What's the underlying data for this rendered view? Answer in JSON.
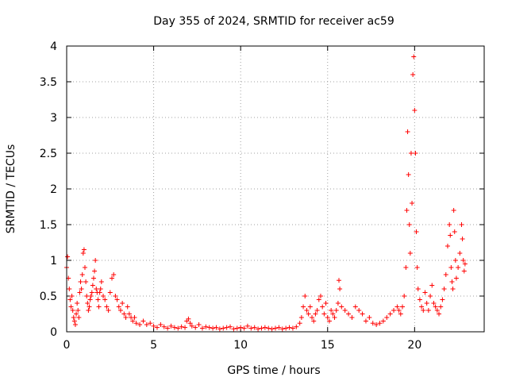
{
  "chart_data": {
    "type": "scatter",
    "title": "Day 355 of 2024, SRMTID for receiver ac59",
    "xlabel": "GPS time / hours",
    "ylabel": "SRMTID / TECUs",
    "xlim": [
      0,
      24
    ],
    "ylim": [
      0,
      4
    ],
    "xticks": [
      0,
      5,
      10,
      15,
      20
    ],
    "yticks": [
      0,
      0.5,
      1,
      1.5,
      2,
      2.5,
      3,
      3.5,
      4
    ],
    "xtick_labels": [
      "0",
      "5",
      "10",
      "15",
      "20"
    ],
    "ytick_labels": [
      "0",
      "0.5",
      "1",
      "1.5",
      "2",
      "2.5",
      "3",
      "3.5",
      "4"
    ],
    "grid": true,
    "marker": "+",
    "marker_color": "#ff0000",
    "series": [
      {
        "name": "SRMTID",
        "points": [
          [
            0.0,
            0.9
          ],
          [
            0.05,
            1.05
          ],
          [
            0.1,
            0.75
          ],
          [
            0.15,
            0.6
          ],
          [
            0.2,
            0.45
          ],
          [
            0.25,
            0.35
          ],
          [
            0.3,
            0.5
          ],
          [
            0.35,
            0.3
          ],
          [
            0.4,
            0.2
          ],
          [
            0.45,
            0.15
          ],
          [
            0.5,
            0.1
          ],
          [
            0.55,
            0.25
          ],
          [
            0.6,
            0.4
          ],
          [
            0.65,
            0.3
          ],
          [
            0.7,
            0.2
          ],
          [
            0.75,
            0.55
          ],
          [
            0.8,
            0.7
          ],
          [
            0.85,
            0.6
          ],
          [
            0.9,
            0.8
          ],
          [
            0.95,
            1.1
          ],
          [
            1.0,
            1.15
          ],
          [
            1.05,
            0.9
          ],
          [
            1.1,
            0.7
          ],
          [
            1.15,
            0.5
          ],
          [
            1.2,
            0.4
          ],
          [
            1.25,
            0.3
          ],
          [
            1.3,
            0.35
          ],
          [
            1.35,
            0.45
          ],
          [
            1.4,
            0.5
          ],
          [
            1.45,
            0.55
          ],
          [
            1.5,
            0.65
          ],
          [
            1.55,
            0.75
          ],
          [
            1.6,
            0.85
          ],
          [
            1.65,
            1.0
          ],
          [
            1.7,
            0.6
          ],
          [
            1.75,
            0.55
          ],
          [
            1.8,
            0.45
          ],
          [
            1.85,
            0.35
          ],
          [
            1.9,
            0.55
          ],
          [
            1.95,
            0.6
          ],
          [
            2.0,
            0.7
          ],
          [
            2.1,
            0.5
          ],
          [
            2.2,
            0.45
          ],
          [
            2.3,
            0.35
          ],
          [
            2.4,
            0.3
          ],
          [
            2.5,
            0.55
          ],
          [
            2.6,
            0.75
          ],
          [
            2.7,
            0.8
          ],
          [
            2.8,
            0.5
          ],
          [
            2.9,
            0.45
          ],
          [
            3.0,
            0.35
          ],
          [
            3.1,
            0.3
          ],
          [
            3.2,
            0.4
          ],
          [
            3.3,
            0.25
          ],
          [
            3.4,
            0.2
          ],
          [
            3.5,
            0.35
          ],
          [
            3.6,
            0.25
          ],
          [
            3.7,
            0.2
          ],
          [
            3.8,
            0.15
          ],
          [
            3.9,
            0.2
          ],
          [
            4.0,
            0.12
          ],
          [
            4.2,
            0.1
          ],
          [
            4.4,
            0.15
          ],
          [
            4.6,
            0.1
          ],
          [
            4.8,
            0.12
          ],
          [
            5.0,
            0.08
          ],
          [
            5.2,
            0.06
          ],
          [
            5.4,
            0.1
          ],
          [
            5.6,
            0.07
          ],
          [
            5.8,
            0.05
          ],
          [
            6.0,
            0.08
          ],
          [
            6.2,
            0.06
          ],
          [
            6.4,
            0.05
          ],
          [
            6.6,
            0.07
          ],
          [
            6.8,
            0.06
          ],
          [
            6.9,
            0.15
          ],
          [
            7.0,
            0.18
          ],
          [
            7.1,
            0.12
          ],
          [
            7.2,
            0.08
          ],
          [
            7.4,
            0.06
          ],
          [
            7.6,
            0.1
          ],
          [
            7.8,
            0.05
          ],
          [
            8.0,
            0.07
          ],
          [
            8.2,
            0.06
          ],
          [
            8.4,
            0.05
          ],
          [
            8.6,
            0.06
          ],
          [
            8.8,
            0.04
          ],
          [
            9.0,
            0.05
          ],
          [
            9.2,
            0.06
          ],
          [
            9.4,
            0.07
          ],
          [
            9.6,
            0.04
          ],
          [
            9.8,
            0.05
          ],
          [
            10.0,
            0.06
          ],
          [
            10.2,
            0.05
          ],
          [
            10.4,
            0.08
          ],
          [
            10.6,
            0.05
          ],
          [
            10.8,
            0.06
          ],
          [
            11.0,
            0.04
          ],
          [
            11.2,
            0.05
          ],
          [
            11.4,
            0.06
          ],
          [
            11.6,
            0.05
          ],
          [
            11.8,
            0.04
          ],
          [
            12.0,
            0.05
          ],
          [
            12.2,
            0.06
          ],
          [
            12.4,
            0.04
          ],
          [
            12.6,
            0.05
          ],
          [
            12.8,
            0.06
          ],
          [
            13.0,
            0.05
          ],
          [
            13.2,
            0.07
          ],
          [
            13.4,
            0.12
          ],
          [
            13.5,
            0.2
          ],
          [
            13.6,
            0.35
          ],
          [
            13.7,
            0.5
          ],
          [
            13.8,
            0.3
          ],
          [
            13.9,
            0.25
          ],
          [
            14.0,
            0.35
          ],
          [
            14.1,
            0.2
          ],
          [
            14.2,
            0.15
          ],
          [
            14.3,
            0.25
          ],
          [
            14.4,
            0.3
          ],
          [
            14.5,
            0.45
          ],
          [
            14.6,
            0.5
          ],
          [
            14.7,
            0.35
          ],
          [
            14.8,
            0.25
          ],
          [
            14.9,
            0.4
          ],
          [
            15.0,
            0.2
          ],
          [
            15.1,
            0.15
          ],
          [
            15.2,
            0.3
          ],
          [
            15.3,
            0.25
          ],
          [
            15.4,
            0.2
          ],
          [
            15.5,
            0.3
          ],
          [
            15.6,
            0.4
          ],
          [
            15.65,
            0.72
          ],
          [
            15.7,
            0.6
          ],
          [
            15.8,
            0.35
          ],
          [
            16.0,
            0.3
          ],
          [
            16.2,
            0.25
          ],
          [
            16.4,
            0.2
          ],
          [
            16.6,
            0.35
          ],
          [
            16.8,
            0.3
          ],
          [
            17.0,
            0.25
          ],
          [
            17.2,
            0.15
          ],
          [
            17.4,
            0.2
          ],
          [
            17.6,
            0.12
          ],
          [
            17.8,
            0.1
          ],
          [
            18.0,
            0.12
          ],
          [
            18.2,
            0.15
          ],
          [
            18.4,
            0.2
          ],
          [
            18.6,
            0.25
          ],
          [
            18.8,
            0.3
          ],
          [
            19.0,
            0.35
          ],
          [
            19.1,
            0.3
          ],
          [
            19.2,
            0.25
          ],
          [
            19.3,
            0.35
          ],
          [
            19.4,
            0.5
          ],
          [
            19.5,
            0.9
          ],
          [
            19.55,
            1.7
          ],
          [
            19.6,
            2.8
          ],
          [
            19.65,
            2.2
          ],
          [
            19.7,
            1.5
          ],
          [
            19.75,
            1.1
          ],
          [
            19.8,
            2.5
          ],
          [
            19.85,
            1.8
          ],
          [
            19.9,
            3.6
          ],
          [
            19.95,
            3.85
          ],
          [
            20.0,
            3.1
          ],
          [
            20.05,
            2.5
          ],
          [
            20.1,
            1.4
          ],
          [
            20.15,
            0.9
          ],
          [
            20.2,
            0.6
          ],
          [
            20.3,
            0.45
          ],
          [
            20.4,
            0.35
          ],
          [
            20.5,
            0.3
          ],
          [
            20.6,
            0.55
          ],
          [
            20.7,
            0.4
          ],
          [
            20.8,
            0.3
          ],
          [
            20.9,
            0.5
          ],
          [
            21.0,
            0.65
          ],
          [
            21.1,
            0.4
          ],
          [
            21.2,
            0.35
          ],
          [
            21.3,
            0.3
          ],
          [
            21.4,
            0.25
          ],
          [
            21.5,
            0.35
          ],
          [
            21.6,
            0.45
          ],
          [
            21.7,
            0.6
          ],
          [
            21.8,
            0.8
          ],
          [
            21.9,
            1.2
          ],
          [
            22.0,
            1.5
          ],
          [
            22.05,
            1.35
          ],
          [
            22.1,
            0.9
          ],
          [
            22.15,
            0.7
          ],
          [
            22.2,
            0.6
          ],
          [
            22.25,
            1.7
          ],
          [
            22.3,
            1.4
          ],
          [
            22.35,
            1.0
          ],
          [
            22.4,
            0.75
          ],
          [
            22.5,
            0.9
          ],
          [
            22.6,
            1.1
          ],
          [
            22.7,
            1.5
          ],
          [
            22.75,
            1.3
          ],
          [
            22.8,
            1.0
          ],
          [
            22.85,
            0.85
          ],
          [
            22.9,
            0.95
          ]
        ]
      }
    ]
  }
}
